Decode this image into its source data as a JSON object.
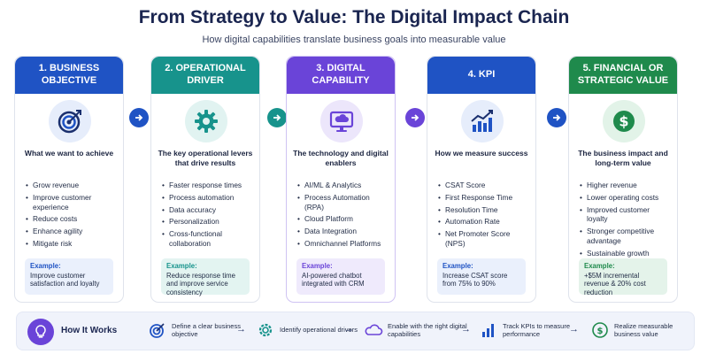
{
  "title": "From Strategy to Value: The Digital Impact Chain",
  "subtitle": "How digital capabilities translate business goals into measurable value",
  "cards": [
    {
      "header": "1. BUSINESS OBJECTIVE",
      "icon": "target-icon",
      "color": "#1f53c4",
      "subtitle": "What we want to achieve",
      "items": [
        "Grow revenue",
        "Improve customer experience",
        "Reduce costs",
        "Enhance agility",
        "Mitigate risk"
      ],
      "example_title": "Example:",
      "example_text": "Improve customer satisfaction and loyalty"
    },
    {
      "header": "2. OPERATIONAL DRIVER",
      "icon": "gear-icon",
      "color": "#17938c",
      "subtitle": "The key operational levers that drive results",
      "items": [
        "Faster response times",
        "Process automation",
        "Data accuracy",
        "Personalization",
        "Cross-functional collaboration"
      ],
      "example_title": "Example:",
      "example_text": "Reduce response time and improve service consistency"
    },
    {
      "header": "3. DIGITAL CAPABILITY",
      "icon": "cloud-monitor-icon",
      "color": "#6a44d8",
      "subtitle": "The technology and digital enablers",
      "items": [
        "AI/ML & Analytics",
        "Process Automation (RPA)",
        "Cloud Platform",
        "Data Integration",
        "Omnichannel Platforms"
      ],
      "example_title": "Example:",
      "example_text": "AI-powered chatbot integrated with CRM"
    },
    {
      "header": "4. KPI",
      "icon": "bar-chart-icon",
      "color": "#1f53c4",
      "subtitle": "How we measure success",
      "items": [
        "CSAT Score",
        "First Response Time",
        "Resolution Time",
        "Automation Rate",
        "Net Promoter Score (NPS)"
      ],
      "example_title": "Example:",
      "example_text": "Increase CSAT score from 75% to 90%"
    },
    {
      "header": "5. FINANCIAL OR STRATEGIC VALUE",
      "icon": "dollar-icon",
      "color": "#1f8a4c",
      "subtitle": "The business impact and long-term value",
      "items": [
        "Higher revenue",
        "Lower operating costs",
        "Improved customer loyalty",
        "Stronger competitive advantage",
        "Sustainable growth"
      ],
      "example_title": "Example:",
      "example_text": "+$5M incremental revenue & 20% cost reduction"
    }
  ],
  "how_it_works": {
    "label": "How It Works",
    "steps": [
      {
        "text": "Define a clear business objective",
        "icon": "target-icon"
      },
      {
        "text": "Identify operational drivers",
        "icon": "gear-icon"
      },
      {
        "text": "Enable with the right digital capabilities",
        "icon": "cloud-icon"
      },
      {
        "text": "Track KPIs to measure performance",
        "icon": "bar-chart-icon"
      },
      {
        "text": "Realize measurable business value",
        "icon": "dollar-icon"
      }
    ]
  }
}
